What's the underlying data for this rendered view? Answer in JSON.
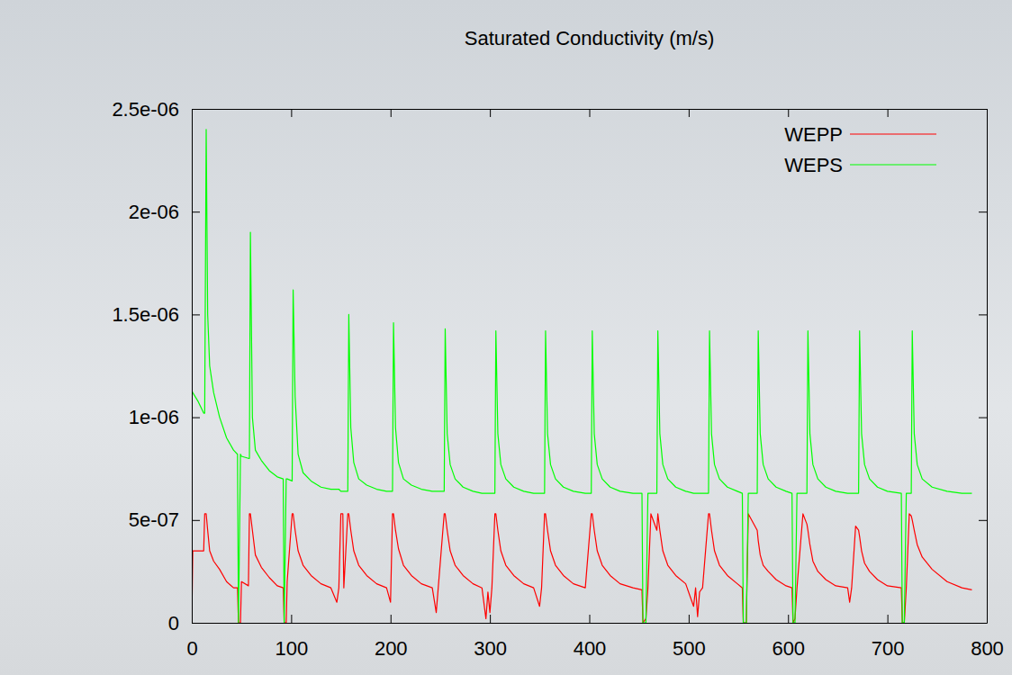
{
  "chart_data": {
    "type": "line",
    "title": "Saturated Conductivity (m/s)",
    "x": [
      0,
      1,
      6,
      12,
      13,
      14.5,
      16,
      18,
      22,
      28,
      35,
      42,
      46,
      47,
      49,
      50,
      57,
      58,
      59,
      61,
      64,
      70,
      78,
      86,
      92,
      93,
      95,
      96,
      101,
      102,
      104,
      107,
      112,
      120,
      130,
      140,
      146,
      148,
      150,
      152,
      153,
      157,
      158,
      160,
      163,
      168,
      176,
      186,
      196,
      200,
      202,
      203,
      205,
      208,
      213,
      221,
      231,
      242,
      246,
      248,
      254,
      255,
      257,
      260,
      265,
      273,
      283,
      292,
      296,
      298,
      300,
      302,
      305,
      306,
      308,
      311,
      316,
      324,
      334,
      344,
      350,
      352,
      355,
      356,
      358,
      361,
      366,
      374,
      384,
      396,
      402,
      403,
      405,
      408,
      413,
      421,
      431,
      444,
      453,
      454,
      457,
      459,
      462,
      468,
      469,
      471,
      474,
      479,
      487,
      497,
      505,
      507,
      509,
      511,
      514,
      520,
      521,
      523,
      526,
      531,
      539,
      549,
      554,
      555,
      558,
      560,
      569,
      570,
      572,
      575,
      580,
      588,
      598,
      604,
      605,
      607,
      609,
      615,
      619,
      620,
      622,
      625,
      630,
      638,
      648,
      660,
      662,
      664,
      668,
      671,
      672,
      674,
      677,
      682,
      690,
      700,
      714,
      715,
      717,
      719,
      722,
      724,
      725,
      727,
      730,
      735,
      745,
      760,
      775,
      785
    ],
    "series": [
      {
        "name": "WEPP",
        "color": "#ff0000",
        "values": [
          0,
          3.5e-07,
          3.5e-07,
          3.5e-07,
          5.3e-07,
          5.3e-07,
          4.5e-07,
          3.5e-07,
          3e-07,
          2.6e-07,
          2e-07,
          1.7e-07,
          1.7e-07,
          0,
          0,
          2e-07,
          1.8e-07,
          5.3e-07,
          5.3e-07,
          4.5e-07,
          3.3e-07,
          2.7e-07,
          2.2e-07,
          1.8e-07,
          1.7e-07,
          0,
          0,
          2e-07,
          5.3e-07,
          5.3e-07,
          4.5e-07,
          3.5e-07,
          2.8e-07,
          2.3e-07,
          1.9e-07,
          1.7e-07,
          1e-07,
          1.7e-07,
          5.3e-07,
          5.3e-07,
          1.7e-07,
          5.3e-07,
          5.3e-07,
          4.5e-07,
          3.5e-07,
          2.8e-07,
          2.3e-07,
          1.9e-07,
          1.7e-07,
          1e-07,
          5.3e-07,
          5.3e-07,
          4.5e-07,
          3.6e-07,
          2.8e-07,
          2.3e-07,
          1.9e-07,
          1.7e-07,
          5e-08,
          1.7e-07,
          5.3e-07,
          5.3e-07,
          4.5e-07,
          3.5e-07,
          2.8e-07,
          2.3e-07,
          1.9e-07,
          1.7e-07,
          2e-08,
          1.5e-07,
          5e-08,
          1.7e-07,
          5.3e-07,
          5.3e-07,
          4.5e-07,
          3.5e-07,
          2.8e-07,
          2.3e-07,
          1.9e-07,
          1.7e-07,
          8e-08,
          1.7e-07,
          5.3e-07,
          5.3e-07,
          4.5e-07,
          3.5e-07,
          2.8e-07,
          2.3e-07,
          1.9e-07,
          1.7e-07,
          5.3e-07,
          5.3e-07,
          4.5e-07,
          3.5e-07,
          2.8e-07,
          2.3e-07,
          1.9e-07,
          1.7e-07,
          1.6e-07,
          0,
          2e-08,
          1.7e-07,
          5.3e-07,
          4.5e-07,
          5.3e-07,
          4.5e-07,
          3.5e-07,
          2.8e-07,
          2.3e-07,
          1.9e-07,
          8e-08,
          1.7e-07,
          3e-08,
          1.5e-07,
          1.7e-07,
          5.3e-07,
          5.3e-07,
          4.5e-07,
          3.5e-07,
          2.8e-07,
          2.3e-07,
          1.9e-07,
          1.7e-07,
          0,
          0,
          5.3e-07,
          4.5e-07,
          4e-07,
          3.3e-07,
          2.8e-07,
          2.5e-07,
          2.1e-07,
          1.8e-07,
          1.7e-07,
          0,
          2e-08,
          1.7e-07,
          5.3e-07,
          4.8e-07,
          4.5e-07,
          3.8e-07,
          3e-07,
          2.5e-07,
          2.1e-07,
          1.8e-07,
          1.7e-07,
          1e-07,
          1.7e-07,
          4.7e-07,
          4.5e-07,
          4.2e-07,
          3.5e-07,
          2.9e-07,
          2.5e-07,
          2.1e-07,
          1.8e-07,
          1.7e-07,
          0,
          0,
          1.7e-07,
          5.3e-07,
          5.2e-07,
          5e-07,
          4.5e-07,
          3.8e-07,
          3.2e-07,
          2.6e-07,
          2e-07,
          1.7e-07,
          1.6e-07
        ]
      },
      {
        "name": "WEPS",
        "color": "#00ff00",
        "values": [
          1.13e-06,
          1.12e-06,
          1.08e-06,
          1.02e-06,
          1.02e-06,
          2.4e-06,
          1.5e-06,
          1.25e-06,
          1.12e-06,
          1e-06,
          9e-07,
          8.4e-07,
          8.2e-07,
          0,
          8.2e-07,
          8.1e-07,
          8e-07,
          8e-07,
          1.9e-06,
          1e-06,
          8.4e-07,
          7.9e-07,
          7.4e-07,
          7.1e-07,
          7e-07,
          0,
          7e-07,
          7e-07,
          6.9e-07,
          1.62e-06,
          1.1e-06,
          8.2e-07,
          7.3e-07,
          6.9e-07,
          6.6e-07,
          6.5e-07,
          6.5e-07,
          6.5e-07,
          6.4e-07,
          6.4e-07,
          6.4e-07,
          6.4e-07,
          1.5e-06,
          9.5e-07,
          7.8e-07,
          7e-07,
          6.7e-07,
          6.5e-07,
          6.4e-07,
          6.4e-07,
          6.4e-07,
          1.46e-06,
          9.5e-07,
          7.8e-07,
          7e-07,
          6.7e-07,
          6.5e-07,
          6.4e-07,
          6.4e-07,
          6.4e-07,
          6.4e-07,
          1.43e-06,
          9.2e-07,
          7.7e-07,
          7e-07,
          6.6e-07,
          6.4e-07,
          6.3e-07,
          6.3e-07,
          6.3e-07,
          6.3e-07,
          6.3e-07,
          6.3e-07,
          1.42e-06,
          9.2e-07,
          7.7e-07,
          7e-07,
          6.6e-07,
          6.4e-07,
          6.3e-07,
          6.3e-07,
          6.3e-07,
          6.3e-07,
          1.42e-06,
          9.2e-07,
          7.7e-07,
          7e-07,
          6.6e-07,
          6.4e-07,
          6.3e-07,
          6.3e-07,
          1.42e-06,
          9.2e-07,
          7.7e-07,
          7e-07,
          6.6e-07,
          6.4e-07,
          6.3e-07,
          6.3e-07,
          0,
          0,
          6.3e-07,
          6.3e-07,
          6.3e-07,
          1.42e-06,
          9.2e-07,
          7.7e-07,
          7e-07,
          6.6e-07,
          6.4e-07,
          6.3e-07,
          6.3e-07,
          6.3e-07,
          6.3e-07,
          6.3e-07,
          6.3e-07,
          1.42e-06,
          9.2e-07,
          7.7e-07,
          7e-07,
          6.6e-07,
          6.4e-07,
          6.3e-07,
          0,
          0,
          6.3e-07,
          6.3e-07,
          1.42e-06,
          9.2e-07,
          7.7e-07,
          7e-07,
          6.6e-07,
          6.4e-07,
          6.3e-07,
          0,
          0,
          6.3e-07,
          6.3e-07,
          6.3e-07,
          1.42e-06,
          9.2e-07,
          7.7e-07,
          7e-07,
          6.6e-07,
          6.4e-07,
          6.3e-07,
          6.3e-07,
          6.3e-07,
          6.3e-07,
          6.3e-07,
          1.42e-06,
          9.2e-07,
          7.7e-07,
          7e-07,
          6.6e-07,
          6.4e-07,
          6.3e-07,
          0,
          0,
          6.3e-07,
          6.3e-07,
          6.3e-07,
          1.42e-06,
          9.2e-07,
          7.7e-07,
          7e-07,
          6.6e-07,
          6.4e-07,
          6.3e-07,
          6.3e-07
        ]
      }
    ],
    "xlim": [
      0,
      800
    ],
    "xticks": [
      0,
      100,
      200,
      300,
      400,
      500,
      600,
      700,
      800
    ],
    "ylim": [
      0,
      2.5e-06
    ],
    "yticks": [
      0,
      {
        "value": 5e-07,
        "label": "5e-07"
      },
      {
        "value": 1e-06,
        "label": "1e-06"
      },
      {
        "value": 1.5e-06,
        "label": "1.5e-06"
      },
      {
        "value": 2e-06,
        "label": "2e-06"
      },
      {
        "value": 2.5e-06,
        "label": "2.5e-06"
      }
    ],
    "grid": false,
    "legend": "upper right"
  }
}
